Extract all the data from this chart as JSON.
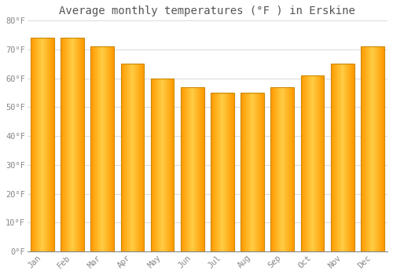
{
  "title": "Average monthly temperatures (°F ) in Erskine",
  "months": [
    "Jan",
    "Feb",
    "Mar",
    "Apr",
    "May",
    "Jun",
    "Jul",
    "Aug",
    "Sep",
    "Oct",
    "Nov",
    "Dec"
  ],
  "values": [
    74,
    74,
    71,
    65,
    60,
    57,
    55,
    55,
    57,
    61,
    65,
    71
  ],
  "ylim": [
    0,
    80
  ],
  "yticks": [
    0,
    10,
    20,
    30,
    40,
    50,
    60,
    70,
    80
  ],
  "ytick_labels": [
    "0°F",
    "10°F",
    "20°F",
    "30°F",
    "40°F",
    "50°F",
    "60°F",
    "70°F",
    "80°F"
  ],
  "background_color": "#FFFFFF",
  "grid_color": "#DDDDDD",
  "bar_edge_color": "#CC8800",
  "bar_center_color": "#FFCC44",
  "bar_outer_color": "#FF9900",
  "title_fontsize": 10,
  "tick_fontsize": 7.5,
  "tick_color": "#888888",
  "title_color": "#555555"
}
